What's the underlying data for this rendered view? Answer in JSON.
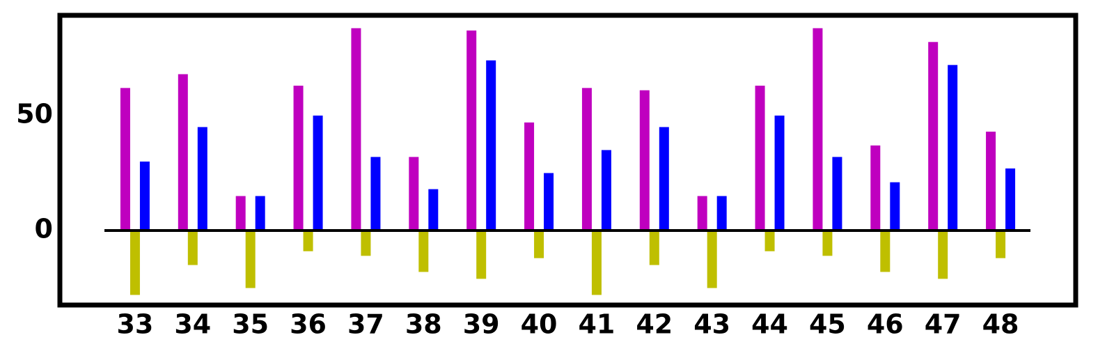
{
  "chart_data": {
    "type": "bar",
    "categories": [
      "33",
      "34",
      "35",
      "36",
      "37",
      "38",
      "39",
      "40",
      "41",
      "42",
      "43",
      "44",
      "45",
      "46",
      "47",
      "48"
    ],
    "series": [
      {
        "color": "#bf00bf",
        "values": [
          62,
          68,
          15,
          63,
          88,
          32,
          87,
          47,
          62,
          61,
          15,
          63,
          88,
          37,
          82,
          43
        ]
      },
      {
        "color": "#bfbf00",
        "values": [
          -28,
          -15,
          -25,
          -9,
          -11,
          -18,
          -21,
          -12,
          -28,
          -15,
          -25,
          -9,
          -11,
          -18,
          -21,
          -12
        ]
      },
      {
        "color": "#0000ff",
        "values": [
          30,
          45,
          15,
          50,
          32,
          18,
          74,
          25,
          35,
          45,
          15,
          50,
          32,
          21,
          72,
          27
        ]
      }
    ],
    "ylim": [
      -32.4,
      93.6
    ],
    "yticks": [
      0,
      50
    ],
    "grid": false
  }
}
